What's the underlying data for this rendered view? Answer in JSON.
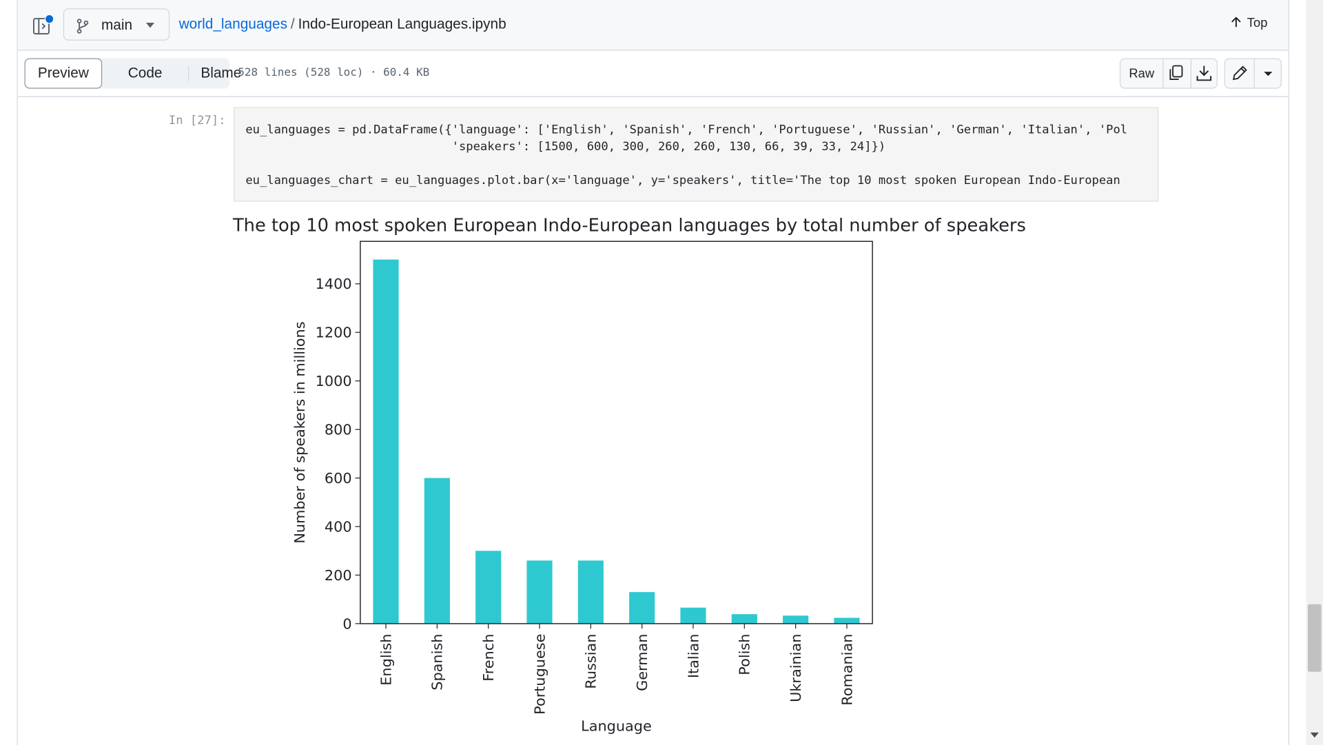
{
  "header": {
    "branch": "main",
    "repo": "world_languages",
    "separator": "/",
    "file": "Indo-European Languages.ipynb",
    "top_label": "Top"
  },
  "toolbar": {
    "tabs": [
      {
        "label": "Preview",
        "active": true
      },
      {
        "label": "Code",
        "active": false
      },
      {
        "label": "Blame",
        "active": false
      }
    ],
    "file_info": "528 lines (528 loc) · 60.4 KB",
    "raw_label": "Raw",
    "icons": [
      "copy-icon",
      "download-icon",
      "pencil-icon",
      "chevron-down-icon"
    ]
  },
  "cell": {
    "prompt": "In [27]:",
    "code_lines": [
      "eu_languages = pd.DataFrame({'language': ['English', 'Spanish', 'French', 'Portuguese', 'Russian', 'German', 'Italian', 'Pol",
      "                             'speakers': [1500, 600, 300, 260, 260, 130, 66, 39, 33, 24]})",
      "",
      "eu_languages_chart = eu_languages.plot.bar(x='language', y='speakers', title='The top 10 most spoken European Indo-European"
    ]
  },
  "chart_data": {
    "type": "bar",
    "title": "The top 10 most spoken European Indo-European languages by total number of speakers",
    "xlabel": "Language",
    "ylabel": "Number of speakers in millions",
    "categories": [
      "English",
      "Spanish",
      "French",
      "Portuguese",
      "Russian",
      "German",
      "Italian",
      "Polish",
      "Ukrainian",
      "Romanian"
    ],
    "values": [
      1500,
      600,
      300,
      260,
      260,
      130,
      66,
      39,
      33,
      24
    ],
    "ylim": [
      0,
      1575
    ],
    "yticks": [
      0,
      200,
      400,
      600,
      800,
      1000,
      1200,
      1400
    ],
    "bar_color": "#2ec9d0",
    "grid": false,
    "legend": "none"
  },
  "colors": {
    "link": "#0969da",
    "accent_dot": "#0969da"
  }
}
